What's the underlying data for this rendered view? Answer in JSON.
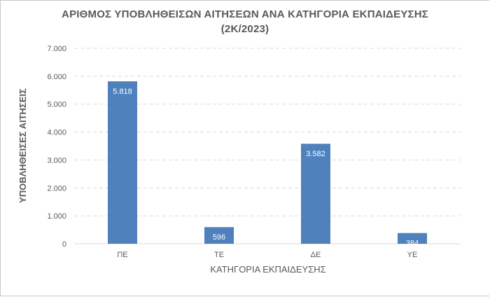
{
  "chart_data": {
    "type": "bar",
    "title_line1": "ΑΡΙΘΜΟΣ ΥΠΟΒΛΗΘΕΙΣΩΝ ΑΙΤΗΣΕΩΝ ΑΝΑ ΚΑΤΗΓΟΡΙΑ ΕΚΠΑΙΔΕΥΣΗΣ",
    "title_line2": "(2Κ/2023)",
    "xlabel": "ΚΑΤΗΓΟΡΙΑ ΕΚΠΑΙΔΕΥΣΗΣ",
    "ylabel": "ΥΠΟΒΛΗΘΕΙΣΕΣ ΑΙΤΗΣΕΙΣ",
    "categories": [
      "ΠΕ",
      "ΤΕ",
      "ΔΕ",
      "ΥΕ"
    ],
    "values": [
      5818,
      596,
      3582,
      384
    ],
    "data_labels": [
      "5.818",
      "596",
      "3.582",
      "384"
    ],
    "ylim": [
      0,
      7000
    ],
    "yticks": [
      0,
      1000,
      2000,
      3000,
      4000,
      5000,
      6000,
      7000
    ],
    "ytick_labels": [
      "0",
      "1.000",
      "2.000",
      "3.000",
      "4.000",
      "5.000",
      "6.000",
      "7.000"
    ],
    "grid": true,
    "bar_color": "#4f81bd",
    "grid_color": "#d9d9d9"
  }
}
